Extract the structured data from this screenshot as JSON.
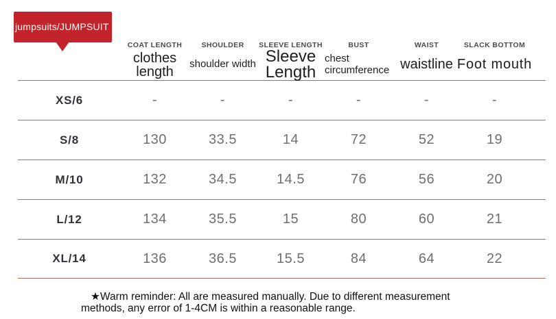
{
  "badge": {
    "label": "jumpsuits/JUMPSUIT",
    "color": "#c3242c"
  },
  "table": {
    "line_color": "#b26b62",
    "columns": [
      {
        "cap": "COAT LENGTH",
        "sub": "clothes length"
      },
      {
        "cap": "SHOULDER",
        "sub": "shoulder width"
      },
      {
        "cap": "SLEEVE LENGTH",
        "sub": "Sleeve Length"
      },
      {
        "cap": "BUST",
        "sub": "chest circumference"
      },
      {
        "cap": "WAIST",
        "sub": "waistline"
      },
      {
        "cap": "SLACK BOTTOM",
        "sub": "Foot mouth"
      }
    ],
    "rows": [
      {
        "size": "XS/6",
        "values": [
          "-",
          "-",
          "-",
          "-",
          "-",
          "-"
        ]
      },
      {
        "size": "S/8",
        "values": [
          "130",
          "33.5",
          "14",
          "72",
          "52",
          "19"
        ]
      },
      {
        "size": "M/10",
        "values": [
          "132",
          "34.5",
          "14.5",
          "76",
          "56",
          "20"
        ]
      },
      {
        "size": "L/12",
        "values": [
          "134",
          "35.5",
          "15",
          "80",
          "60",
          "21"
        ]
      },
      {
        "size": "XL/14",
        "values": [
          "136",
          "36.5",
          "15.5",
          "84",
          "64",
          "22"
        ]
      }
    ]
  },
  "footer": {
    "note": "★Warm reminder: All are measured manually. Due to different measurement methods, any error of 1-4CM is within a reasonable range."
  }
}
